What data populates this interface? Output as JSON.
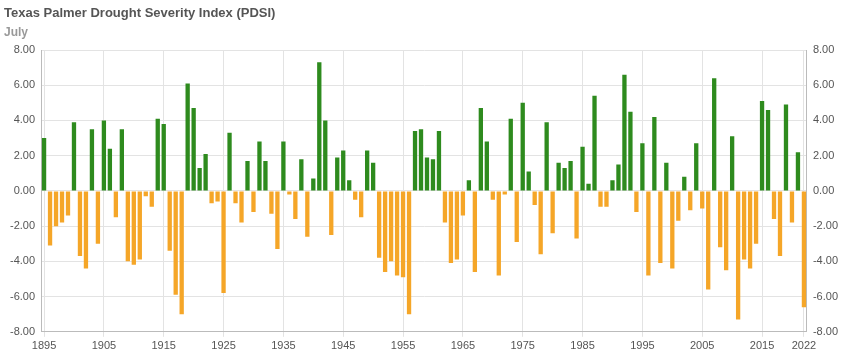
{
  "chart_data": {
    "type": "bar",
    "title": "Texas Palmer Drought Severity Index (PDSI)",
    "subtitle": "July",
    "categories": [
      "1895",
      null,
      null,
      null,
      null,
      null,
      null,
      null,
      null,
      null,
      "1905",
      null,
      null,
      null,
      null,
      null,
      null,
      null,
      null,
      null,
      "1915",
      null,
      null,
      null,
      null,
      null,
      null,
      null,
      null,
      null,
      "1925",
      null,
      null,
      null,
      null,
      null,
      null,
      null,
      null,
      null,
      "1935",
      null,
      null,
      null,
      null,
      null,
      null,
      null,
      null,
      null,
      "1945",
      null,
      null,
      null,
      null,
      null,
      null,
      null,
      null,
      null,
      "1955",
      null,
      null,
      null,
      null,
      null,
      null,
      null,
      null,
      null,
      "1965",
      null,
      null,
      null,
      null,
      null,
      null,
      null,
      null,
      null,
      "1975",
      null,
      null,
      null,
      null,
      null,
      null,
      null,
      null,
      null,
      "1985",
      null,
      null,
      null,
      null,
      null,
      null,
      null,
      null,
      null,
      "1995",
      null,
      null,
      null,
      null,
      null,
      null,
      null,
      null,
      null,
      "2005",
      null,
      null,
      null,
      null,
      null,
      null,
      null,
      null,
      null,
      "2015",
      null,
      null,
      null,
      null,
      null,
      null,
      "2022"
    ],
    "values": [
      3.0,
      -3.1,
      -2.0,
      -1.8,
      -1.4,
      3.9,
      -3.7,
      -4.4,
      3.5,
      -3.0,
      4.0,
      2.4,
      -1.5,
      3.5,
      -4.0,
      -4.2,
      -3.9,
      -0.3,
      -0.9,
      4.1,
      3.8,
      -3.4,
      -5.9,
      -7.0,
      6.1,
      4.7,
      1.3,
      2.1,
      -0.7,
      -0.6,
      -5.8,
      3.3,
      -0.7,
      -1.8,
      1.7,
      -1.2,
      2.8,
      1.7,
      -1.3,
      -3.3,
      2.8,
      -0.2,
      -1.6,
      1.8,
      -2.6,
      0.7,
      7.3,
      4.0,
      -2.5,
      1.9,
      2.3,
      0.6,
      -0.5,
      -1.5,
      2.3,
      1.6,
      -3.8,
      -4.6,
      -4.0,
      -4.8,
      -4.9,
      -7.0,
      3.4,
      3.5,
      1.9,
      1.8,
      3.4,
      -1.8,
      -4.1,
      -3.9,
      -1.4,
      0.6,
      -4.6,
      4.7,
      2.8,
      -0.5,
      -4.8,
      -0.2,
      4.1,
      -2.9,
      5.0,
      1.1,
      -0.8,
      -3.6,
      3.9,
      -2.4,
      1.6,
      1.3,
      1.7,
      -2.7,
      2.5,
      0.4,
      5.4,
      -0.9,
      -0.9,
      0.6,
      1.5,
      6.6,
      4.5,
      -1.2,
      2.7,
      -4.8,
      4.2,
      -4.1,
      1.6,
      -4.4,
      -1.7,
      0.8,
      -1.1,
      2.7,
      -1.0,
      -5.6,
      6.4,
      -3.2,
      -4.5,
      3.1,
      -7.3,
      -3.9,
      -4.4,
      -3.0,
      5.1,
      4.6,
      -1.6,
      -3.7,
      4.9,
      -1.8,
      2.2,
      -6.6
    ],
    "colors": [
      "#2e8b1e",
      "#f5a628",
      "#f5a628",
      "#f5a628",
      "#f5a628",
      "#2e8b1e",
      "#f5a628",
      "#f5a628",
      "#2e8b1e",
      "#f5a628",
      "#2e8b1e",
      "#2e8b1e",
      "#f5a628",
      "#2e8b1e",
      "#f5a628",
      "#f5a628",
      "#f5a628",
      "#f5a628",
      "#f5a628",
      "#2e8b1e",
      "#2e8b1e",
      "#f5a628",
      "#f5a628",
      "#f5a628",
      "#2e8b1e",
      "#2e8b1e",
      "#2e8b1e",
      "#2e8b1e",
      "#f5a628",
      "#f5a628",
      "#f5a628",
      "#2e8b1e",
      "#f5a628",
      "#f5a628",
      "#2e8b1e",
      "#f5a628",
      "#2e8b1e",
      "#2e8b1e",
      "#f5a628",
      "#f5a628",
      "#2e8b1e",
      "#f5a628",
      "#f5a628",
      "#2e8b1e",
      "#f5a628",
      "#2e8b1e",
      "#2e8b1e",
      "#2e8b1e",
      "#f5a628",
      "#2e8b1e",
      "#2e8b1e",
      "#2e8b1e",
      "#f5a628",
      "#f5a628",
      "#2e8b1e",
      "#2e8b1e",
      "#f5a628",
      "#f5a628",
      "#f5a628",
      "#f5a628",
      "#f5a628",
      "#f5a628",
      "#2e8b1e",
      "#2e8b1e",
      "#2e8b1e",
      "#2e8b1e",
      "#2e8b1e",
      "#f5a628",
      "#f5a628",
      "#f5a628",
      "#f5a628",
      "#2e8b1e",
      "#f5a628",
      "#2e8b1e",
      "#2e8b1e",
      "#f5a628",
      "#f5a628",
      "#f5a628",
      "#2e8b1e",
      "#f5a628",
      "#2e8b1e",
      "#2e8b1e",
      "#f5a628",
      "#f5a628",
      "#2e8b1e",
      "#f5a628",
      "#2e8b1e",
      "#2e8b1e",
      "#2e8b1e",
      "#f5a628",
      "#2e8b1e",
      "#2e8b1e",
      "#2e8b1e",
      "#f5a628",
      "#f5a628",
      "#2e8b1e",
      "#2e8b1e",
      "#2e8b1e",
      "#2e8b1e",
      "#f5a628",
      "#2e8b1e",
      "#f5a628",
      "#2e8b1e",
      "#f5a628",
      "#2e8b1e",
      "#f5a628",
      "#f5a628",
      "#2e8b1e",
      "#f5a628",
      "#2e8b1e",
      "#f5a628",
      "#f5a628",
      "#2e8b1e",
      "#f5a628",
      "#f5a628",
      "#2e8b1e",
      "#f5a628",
      "#f5a628",
      "#f5a628",
      "#f5a628",
      "#2e8b1e",
      "#2e8b1e",
      "#f5a628",
      "#f5a628",
      "#2e8b1e",
      "#f5a628",
      "#2e8b1e",
      "#f5a628"
    ],
    "ylim": [
      -8,
      8
    ],
    "yticks": [
      {
        "value": -8,
        "label": "-8.00"
      },
      {
        "value": -6,
        "label": "-6.00"
      },
      {
        "value": -4,
        "label": "-4.00"
      },
      {
        "value": -2,
        "label": "-2.00"
      },
      {
        "value": 0,
        "label": "0.00"
      },
      {
        "value": 2,
        "label": "2.00"
      },
      {
        "value": 4,
        "label": "4.00"
      },
      {
        "value": 6,
        "label": "6.00"
      },
      {
        "value": 8,
        "label": "8.00"
      }
    ],
    "y2lim": [
      -8,
      8
    ],
    "y2ticks": [
      {
        "value": -8,
        "label": "-8.00"
      },
      {
        "value": -6,
        "label": "-6.00"
      },
      {
        "value": -4,
        "label": "-4.00"
      },
      {
        "value": -2,
        "label": "-2.00"
      },
      {
        "value": 0,
        "label": "0.00"
      },
      {
        "value": 2,
        "label": "2.00"
      },
      {
        "value": 4,
        "label": "4.00"
      },
      {
        "value": 6,
        "label": "6.00"
      },
      {
        "value": 8,
        "label": "8.00"
      }
    ],
    "grid": true
  }
}
